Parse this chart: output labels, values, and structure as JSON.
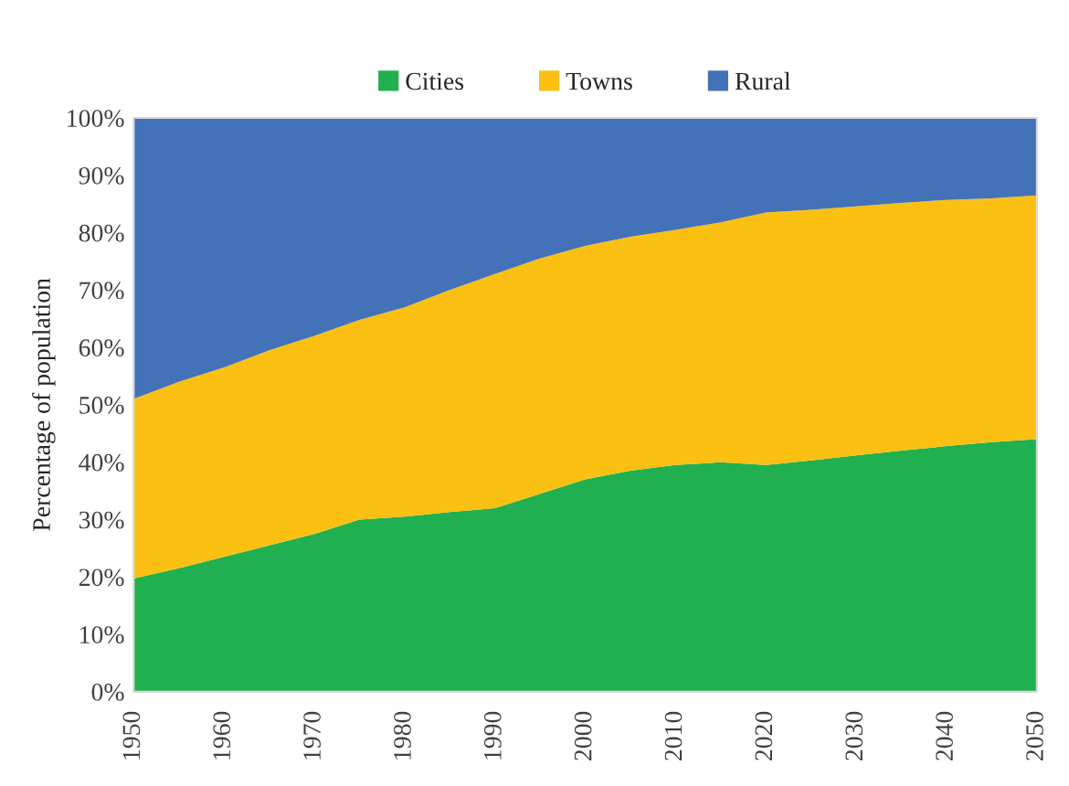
{
  "chart_data": {
    "type": "area",
    "stacked": true,
    "ylabel": "Percentage of population",
    "x": [
      1950,
      1955,
      1960,
      1965,
      1970,
      1975,
      1980,
      1985,
      1990,
      1995,
      2000,
      2005,
      2010,
      2015,
      2020,
      2025,
      2030,
      2035,
      2040,
      2045,
      2050
    ],
    "series": [
      {
        "name": "Cities",
        "color": "#21b050",
        "values": [
          19.7,
          21.5,
          23.5,
          25.5,
          27.5,
          30,
          30.5,
          31.3,
          32,
          34.5,
          37,
          38.5,
          39.5,
          40,
          39.5,
          40.3,
          41.2,
          42,
          42.8,
          43.5,
          44
        ]
      },
      {
        "name": "Towns",
        "color": "#fbc011",
        "values": [
          31.3,
          32.5,
          33,
          34,
          34.5,
          34.8,
          36.5,
          38.7,
          40.8,
          41,
          40.7,
          40.8,
          41,
          41.8,
          44,
          43.7,
          43.4,
          43.2,
          42.9,
          42.5,
          42.5
        ]
      },
      {
        "name": "Rural",
        "color": "#4472b8",
        "values": [
          49,
          46,
          43.5,
          40.5,
          38,
          35.2,
          33,
          30,
          27.2,
          24.5,
          22.3,
          20.7,
          19.5,
          18.2,
          16.5,
          16,
          15.4,
          14.8,
          14.3,
          14,
          13.5
        ]
      }
    ],
    "xlim": [
      1950,
      2050
    ],
    "xticks": [
      1950,
      1960,
      1970,
      1980,
      1990,
      2000,
      2010,
      2020,
      2030,
      2040,
      2050
    ],
    "ylim": [
      0,
      100
    ],
    "yticks": [
      {
        "value": 0,
        "label": "0%"
      },
      {
        "value": 10,
        "label": "10%"
      },
      {
        "value": 20,
        "label": "20%"
      },
      {
        "value": 30,
        "label": "30%"
      },
      {
        "value": 40,
        "label": "40%"
      },
      {
        "value": 50,
        "label": "50%"
      },
      {
        "value": 60,
        "label": "60%"
      },
      {
        "value": 70,
        "label": "70%"
      },
      {
        "value": 80,
        "label": "80%"
      },
      {
        "value": 90,
        "label": "90%"
      },
      {
        "value": 100,
        "label": "100%"
      }
    ],
    "grid": false,
    "legend": "top"
  }
}
